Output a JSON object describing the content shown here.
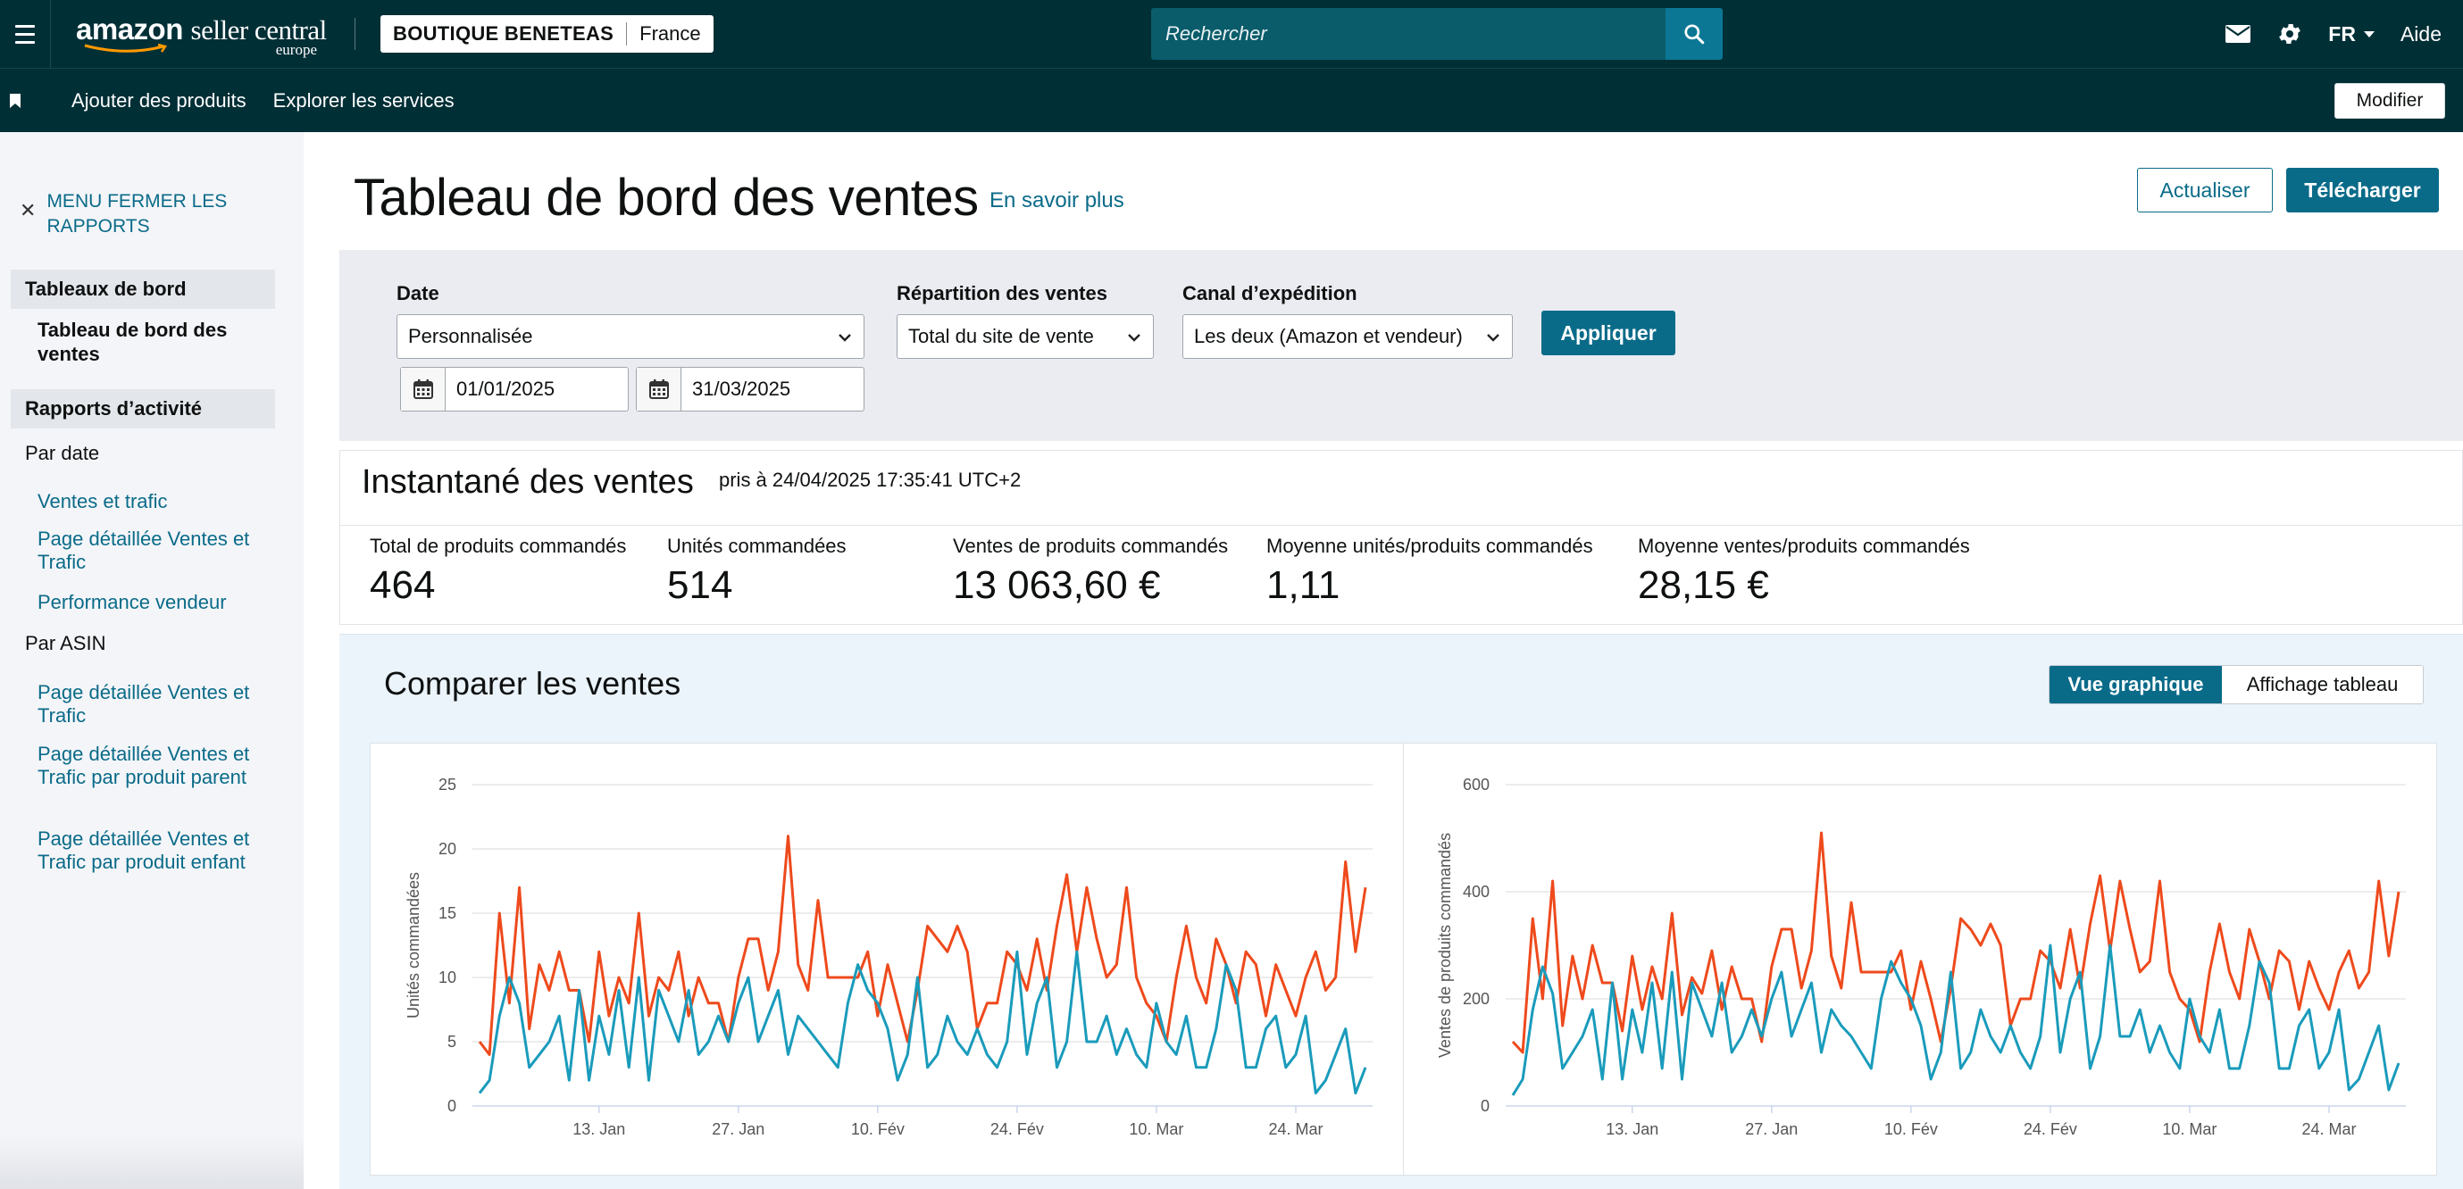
{
  "topbar": {
    "logo_main": "amazon",
    "logo_sub": "seller central",
    "logo_region": "europe",
    "store_name": "BOUTIQUE BENETEAS",
    "store_country": "France",
    "search_placeholder": "Rechercher",
    "language": "FR",
    "help": "Aide"
  },
  "navbar": {
    "links": [
      "Ajouter des produits",
      "Explorer les services"
    ],
    "edit_label": "Modifier"
  },
  "sidebar": {
    "close_label": "MENU FERMER LES RAPPORTS",
    "sections": [
      {
        "heading": "Tableaux de bord",
        "active_item": "Tableau de bord des ventes"
      },
      {
        "heading": "Rapports d’activité"
      }
    ],
    "group_by_date": "Par date",
    "date_links": [
      "Ventes et trafic",
      "Page détaillée Ventes et Trafic",
      "Performance vendeur"
    ],
    "group_by_asin": "Par ASIN",
    "asin_links": [
      "Page détaillée Ventes et Trafic",
      "Page détaillée Ventes et Trafic par produit parent",
      "Page détaillée Ventes et Trafic par produit enfant"
    ]
  },
  "page": {
    "title": "Tableau de bord des ventes",
    "learn_more": "En savoir plus",
    "refresh": "Actualiser",
    "download": "Télécharger"
  },
  "filters": {
    "date_label": "Date",
    "date_value": "Personnalisée",
    "start_date": "01/01/2025",
    "end_date": "31/03/2025",
    "breakdown_label": "Répartition des ventes",
    "breakdown_value": "Total du site de vente",
    "channel_label": "Canal d’expédition",
    "channel_value": "Les deux (Amazon et vendeur)",
    "apply": "Appliquer"
  },
  "snapshot": {
    "title": "Instantané des ventes",
    "taken_at": "pris à 24/04/2025 17:35:41 UTC+2",
    "metrics": [
      {
        "label": "Total de produits commandés",
        "value": "464"
      },
      {
        "label": "Unités commandées",
        "value": "514"
      },
      {
        "label": "Ventes de produits commandés",
        "value": "13 063,60 €"
      },
      {
        "label": "Moyenne unités/produits commandés",
        "value": "1,11"
      },
      {
        "label": "Moyenne ventes/produits commandés",
        "value": "28,15 €"
      }
    ]
  },
  "compare": {
    "title": "Comparer les ventes",
    "view_chart": "Vue graphique",
    "view_table": "Affichage tableau"
  },
  "colors": {
    "header_bg": "#002f36",
    "accent": "#0a6b89",
    "series_orange": "#ee4a1c",
    "series_teal": "#1a9bbb"
  },
  "chart_data": [
    {
      "type": "line",
      "ylabel": "Unités commandées",
      "ylim": [
        0,
        25
      ],
      "yticks": [
        "0",
        "5",
        "10",
        "15",
        "20",
        "25"
      ],
      "xticks": [
        {
          "label": "13. Jan",
          "day": 12
        },
        {
          "label": "27. Jan",
          "day": 26
        },
        {
          "label": "10. Fév",
          "day": 40
        },
        {
          "label": "24. Fév",
          "day": 54
        },
        {
          "label": "10. Mar",
          "day": 68
        },
        {
          "label": "24. Mar",
          "day": 82
        }
      ],
      "x_days": 90,
      "grid": true,
      "series": [
        {
          "color": "#ee4a1c",
          "values": [
            5,
            4,
            15,
            8,
            17,
            6,
            11,
            9,
            12,
            9,
            9,
            5,
            12,
            7,
            10,
            8,
            15,
            7,
            10,
            9,
            12,
            7,
            10,
            8,
            8,
            5,
            10,
            13,
            13,
            9,
            12,
            21,
            11,
            9,
            16,
            10,
            10,
            10,
            10,
            12,
            7,
            11,
            8,
            5,
            9,
            14,
            13,
            12,
            14,
            12,
            6,
            8,
            8,
            12,
            11,
            9,
            13,
            9,
            14,
            18,
            12,
            17,
            13,
            10,
            11,
            17,
            10,
            8,
            7,
            5,
            10,
            14,
            10,
            8,
            13,
            11,
            8,
            12,
            11,
            7,
            11,
            9,
            7,
            10,
            12,
            9,
            10,
            19,
            12,
            17
          ]
        },
        {
          "color": "#1a9bbb",
          "values": [
            1,
            2,
            7,
            10,
            8,
            3,
            4,
            5,
            7,
            2,
            9,
            2,
            7,
            4,
            9,
            3,
            10,
            2,
            9,
            7,
            5,
            9,
            4,
            5,
            7,
            5,
            8,
            10,
            5,
            7,
            9,
            4,
            7,
            6,
            5,
            4,
            3,
            8,
            11,
            9,
            8,
            6,
            2,
            4,
            10,
            3,
            4,
            7,
            5,
            4,
            6,
            4,
            3,
            5,
            12,
            4,
            8,
            10,
            3,
            5,
            12,
            5,
            5,
            7,
            4,
            6,
            4,
            3,
            8,
            5,
            4,
            7,
            3,
            3,
            6,
            11,
            9,
            3,
            3,
            6,
            7,
            3,
            4,
            7,
            1,
            2,
            4,
            6,
            1,
            3
          ]
        }
      ]
    },
    {
      "type": "line",
      "ylabel": "Ventes de produits commandés",
      "ylim": [
        0,
        600
      ],
      "yticks": [
        "0",
        "200",
        "400",
        "600"
      ],
      "xticks": [
        {
          "label": "13. Jan",
          "day": 12
        },
        {
          "label": "27. Jan",
          "day": 26
        },
        {
          "label": "10. Fév",
          "day": 40
        },
        {
          "label": "24. Fév",
          "day": 54
        },
        {
          "label": "10. Mar",
          "day": 68
        },
        {
          "label": "24. Mar",
          "day": 82
        }
      ],
      "x_days": 90,
      "grid": true,
      "series": [
        {
          "color": "#ee4a1c",
          "values": [
            120,
            100,
            350,
            200,
            420,
            150,
            280,
            200,
            300,
            230,
            230,
            140,
            280,
            180,
            260,
            200,
            360,
            170,
            240,
            210,
            290,
            180,
            260,
            200,
            200,
            120,
            260,
            330,
            330,
            220,
            290,
            510,
            280,
            220,
            380,
            250,
            250,
            250,
            250,
            290,
            180,
            270,
            200,
            120,
            220,
            350,
            330,
            300,
            340,
            300,
            150,
            200,
            200,
            290,
            270,
            220,
            330,
            220,
            340,
            430,
            290,
            420,
            330,
            250,
            270,
            420,
            250,
            200,
            180,
            120,
            250,
            340,
            250,
            200,
            330,
            270,
            200,
            290,
            270,
            180,
            270,
            220,
            180,
            250,
            290,
            220,
            250,
            420,
            280,
            400
          ]
        },
        {
          "color": "#1a9bbb",
          "values": [
            20,
            50,
            180,
            260,
            210,
            70,
            100,
            130,
            180,
            50,
            230,
            50,
            180,
            100,
            230,
            70,
            250,
            50,
            230,
            180,
            130,
            230,
            100,
            130,
            180,
            130,
            200,
            250,
            130,
            180,
            230,
            100,
            180,
            150,
            130,
            100,
            70,
            200,
            270,
            230,
            200,
            150,
            50,
            100,
            250,
            70,
            100,
            180,
            130,
            100,
            150,
            100,
            70,
            130,
            300,
            100,
            200,
            250,
            70,
            130,
            300,
            130,
            130,
            180,
            100,
            150,
            100,
            70,
            200,
            130,
            100,
            180,
            70,
            70,
            150,
            270,
            230,
            70,
            70,
            150,
            180,
            70,
            100,
            180,
            30,
            50,
            100,
            150,
            30,
            80
          ]
        }
      ]
    }
  ]
}
